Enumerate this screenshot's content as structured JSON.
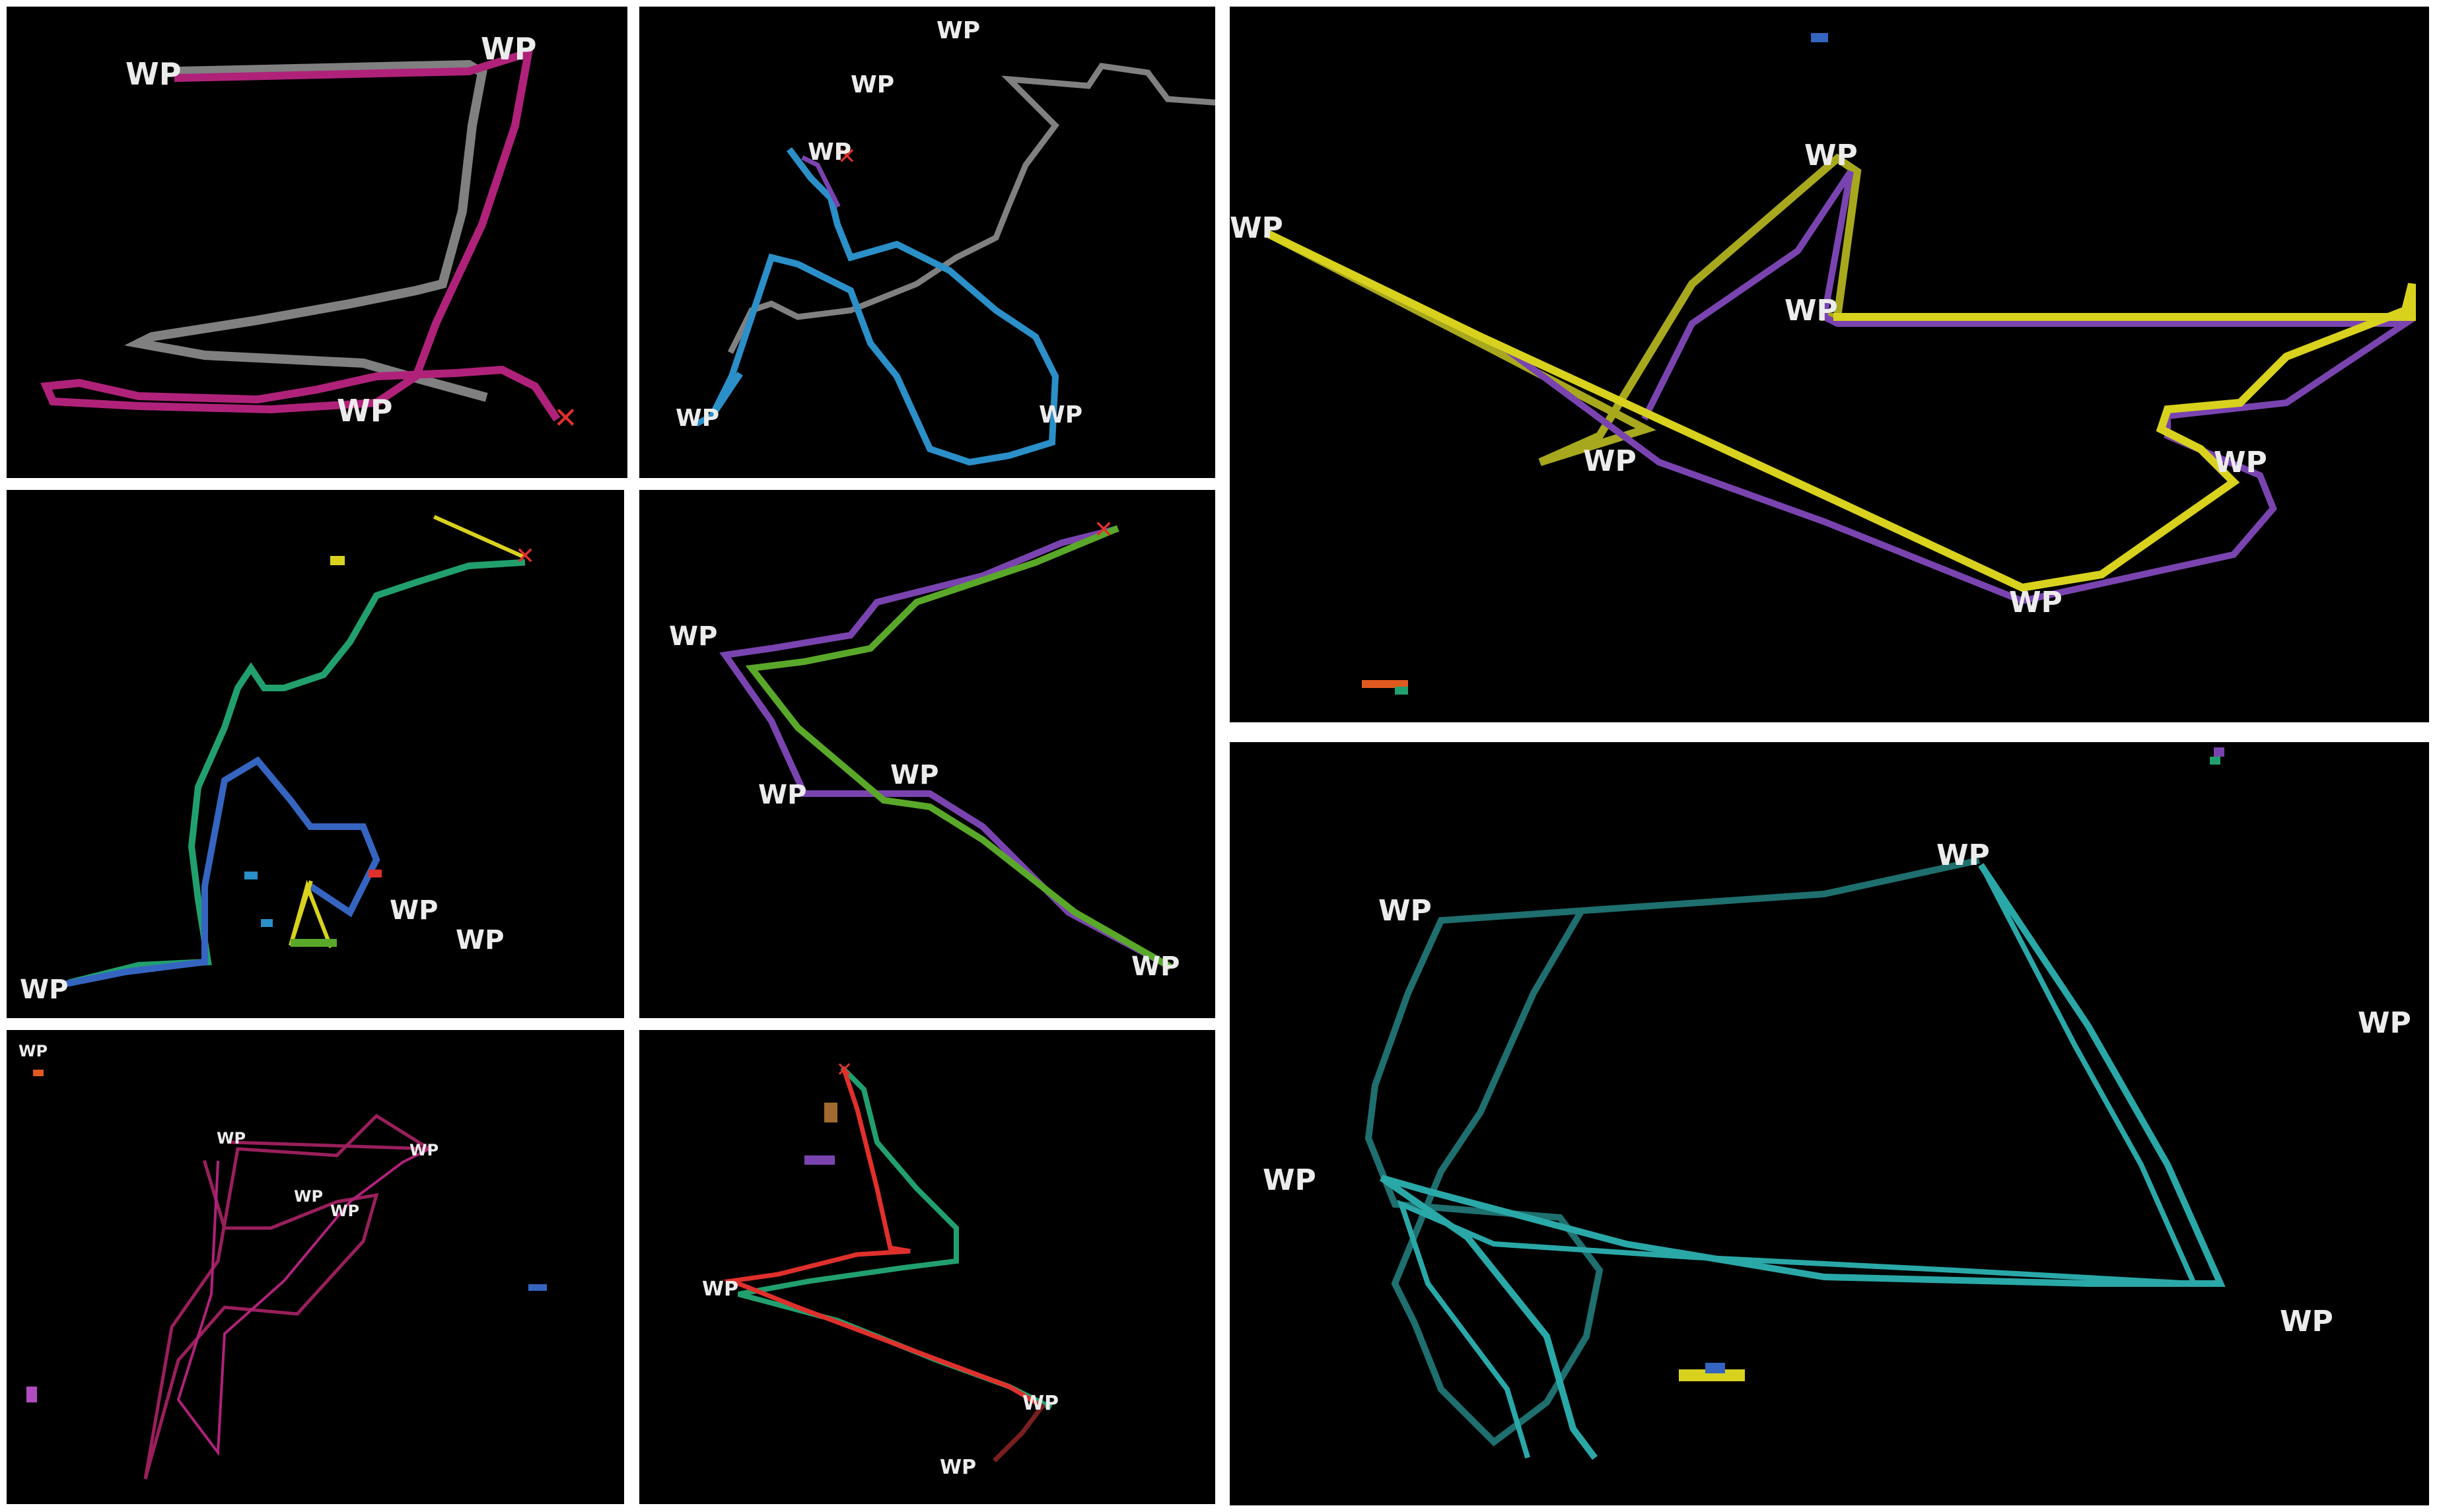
{
  "waypoint_label": "WP",
  "colors": {
    "background": "#000000",
    "gutter": "#ffffff",
    "label": "#ececec",
    "magenta": "#b0227a",
    "gray": "#808080",
    "blue": "#2b8fc8",
    "green_teal": "#21a06e",
    "royal_blue": "#3565c0",
    "yellow": "#d8d21e",
    "purple": "#7a44b0",
    "lime": "#5aa82a",
    "red": "#e0302c",
    "olive": "#a8a81e",
    "teal": "#2aa8a8",
    "dark_teal": "#1f6f6f",
    "crimson": "#9a1f5c"
  },
  "marker_icon": "red-x-marker"
}
